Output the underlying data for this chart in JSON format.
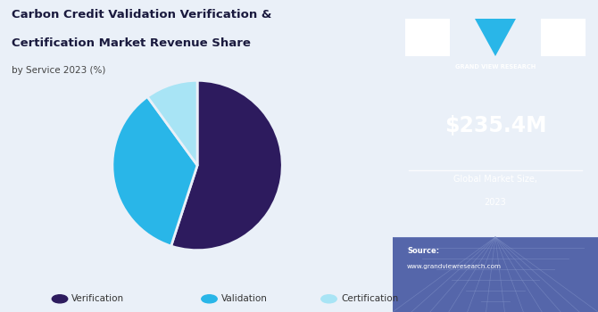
{
  "title_line1": "Carbon Credit Validation Verification &",
  "title_line2": "Certification Market Revenue Share",
  "subtitle": "by Service 2023 (%)",
  "pie_values": [
    55,
    35,
    10
  ],
  "pie_labels": [
    "Verification",
    "Validation",
    "Certification"
  ],
  "pie_colors": [
    "#2d1b5e",
    "#29b6e8",
    "#a8e4f5"
  ],
  "pie_startangle": 90,
  "legend_labels": [
    "Verification",
    "Validation",
    "Certification"
  ],
  "left_bg": "#eaf0f8",
  "right_bg": "#3b1f6e",
  "right_bg_bottom": "#5566aa",
  "market_size": "$235.4M",
  "market_label1": "Global Market Size,",
  "market_label2": "2023",
  "source_label": "Source:",
  "source_url": "www.grandviewresearch.com",
  "gvr_label": "GRAND VIEW RESEARCH",
  "title_color": "#1a1a3e",
  "subtitle_color": "#444444"
}
